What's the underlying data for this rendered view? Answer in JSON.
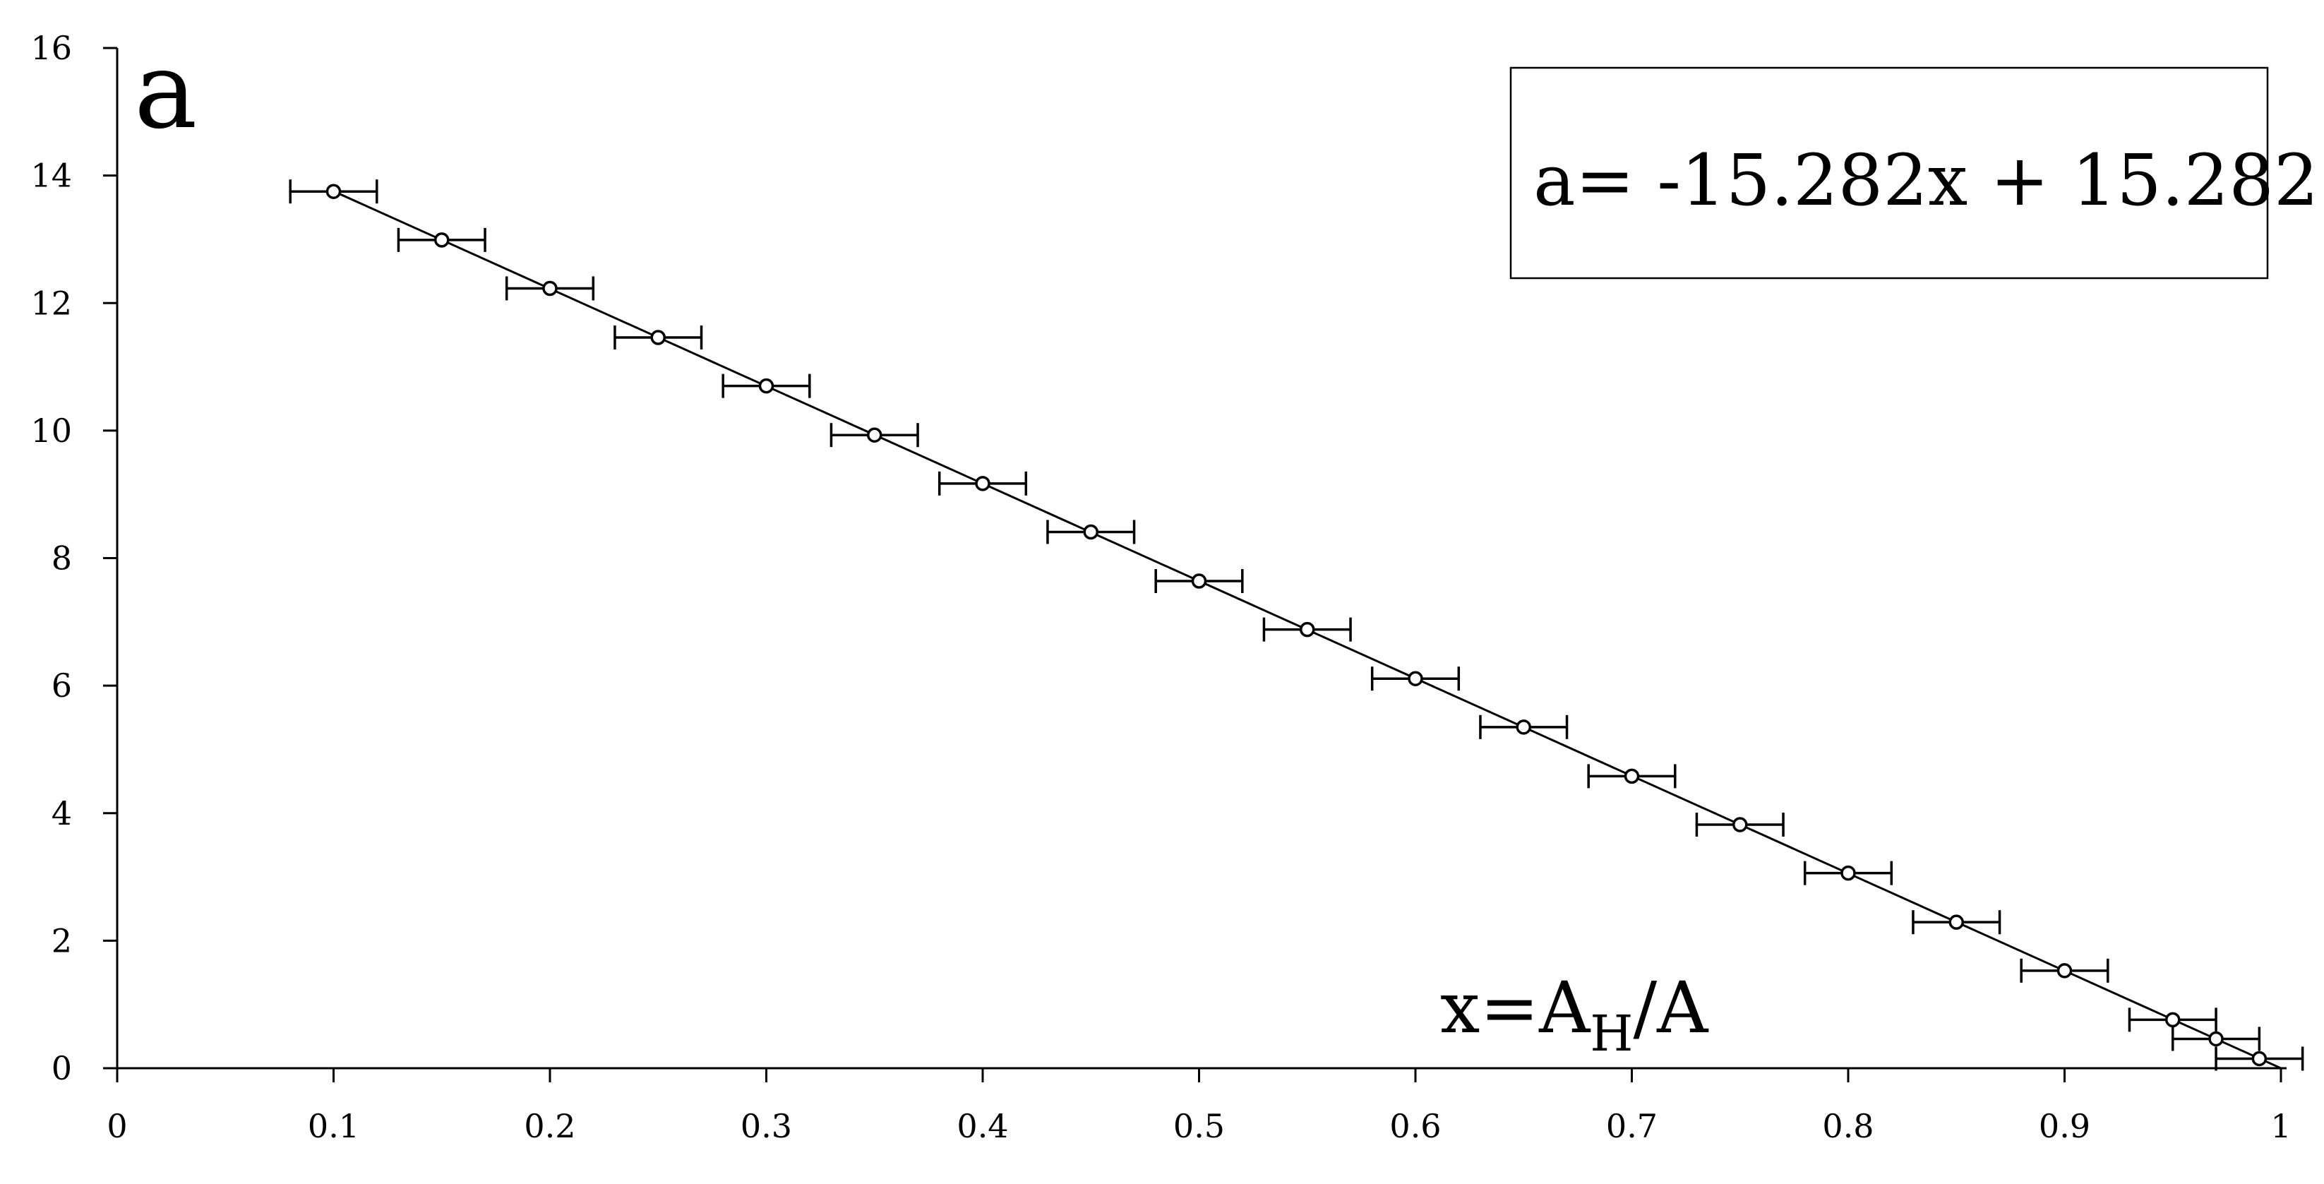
{
  "chart_data": {
    "type": "scatter",
    "panel_label": "a",
    "equation_label": "a= -15.282x + 15.282",
    "xlabel_parts": {
      "main": "x=A",
      "sub": "H",
      "tail": "/A"
    },
    "xlim": [
      0,
      1
    ],
    "ylim": [
      0,
      16
    ],
    "x_ticks": [
      "0",
      "0.1",
      "0.2",
      "0.3",
      "0.4",
      "0.5",
      "0.6",
      "0.7",
      "0.8",
      "0.9",
      "1"
    ],
    "y_ticks": [
      "0",
      "2",
      "4",
      "6",
      "8",
      "10",
      "12",
      "14",
      "16"
    ],
    "grid": false,
    "series": [
      {
        "x": [
          0.1,
          0.15,
          0.2,
          0.25,
          0.3,
          0.35,
          0.4,
          0.45,
          0.5,
          0.55,
          0.6,
          0.65,
          0.7,
          0.75,
          0.8,
          0.85,
          0.9,
          0.95,
          0.97,
          0.99
        ],
        "y": [
          13.75,
          12.99,
          12.23,
          11.46,
          10.7,
          9.93,
          9.17,
          8.41,
          7.64,
          6.88,
          6.11,
          5.35,
          4.58,
          3.82,
          3.06,
          2.29,
          1.53,
          0.76,
          0.46,
          0.15
        ],
        "x_err": 0.02,
        "marker": "open-circle"
      }
    ],
    "trendline": {
      "slope": -15.282,
      "intercept": 15.282,
      "x_range": [
        0.1,
        1.0
      ]
    }
  }
}
